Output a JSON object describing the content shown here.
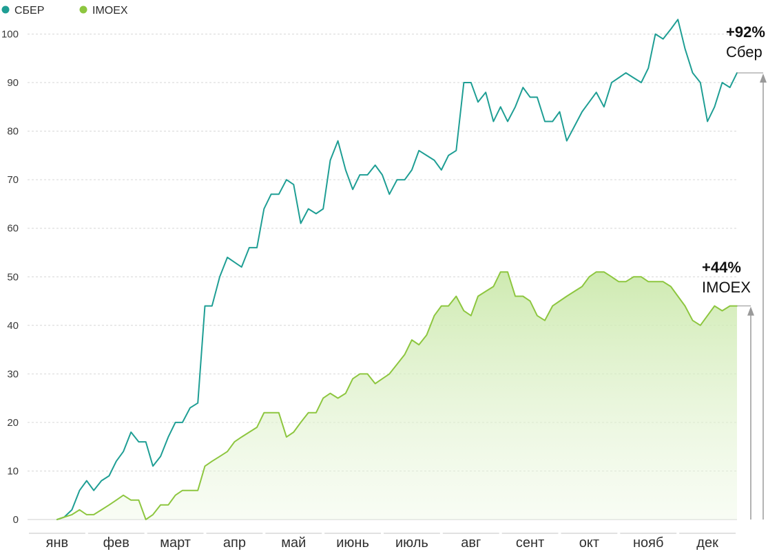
{
  "chart_data": {
    "type": "line",
    "title": "",
    "xlabel": "",
    "ylabel": "",
    "ylim": [
      0,
      100
    ],
    "yticks": [
      0,
      10,
      20,
      30,
      40,
      50,
      60,
      70,
      80,
      90,
      100
    ],
    "grid": "horizontal",
    "legend_position": "top-left",
    "categories": [
      "янв",
      "фев",
      "март",
      "апр",
      "май",
      "июнь",
      "июль",
      "авг",
      "сент",
      "окт",
      "нояб",
      "дек"
    ],
    "series": [
      {
        "name": "СБЕР",
        "color": "#1e9e94",
        "area": false,
        "annotation_value": "+92%",
        "annotation_label": "Сбер",
        "x": [
          0,
          0.12,
          0.25,
          0.38,
          0.5,
          0.62,
          0.75,
          0.88,
          1,
          1.12,
          1.25,
          1.38,
          1.5,
          1.62,
          1.75,
          1.88,
          2,
          2.12,
          2.25,
          2.38,
          2.5,
          2.62,
          2.75,
          2.88,
          3,
          3.12,
          3.25,
          3.38,
          3.5,
          3.62,
          3.75,
          3.88,
          4,
          4.12,
          4.25,
          4.38,
          4.5,
          4.62,
          4.75,
          4.88,
          5,
          5.12,
          5.25,
          5.38,
          5.5,
          5.62,
          5.75,
          5.88,
          6,
          6.12,
          6.25,
          6.38,
          6.5,
          6.62,
          6.75,
          6.88,
          7,
          7.12,
          7.25,
          7.38,
          7.5,
          7.62,
          7.75,
          7.88,
          8,
          8.12,
          8.25,
          8.38,
          8.5,
          8.62,
          8.75,
          8.88,
          9,
          9.12,
          9.25,
          9.38,
          9.5,
          9.62,
          9.75,
          9.88,
          10,
          10.12,
          10.25,
          10.38,
          10.5,
          10.62,
          10.75,
          10.88,
          11,
          11.12,
          11.25,
          11.38,
          11.5
        ],
        "values": [
          0,
          0.5,
          2,
          6,
          8,
          6,
          8,
          9,
          12,
          14,
          18,
          16,
          16,
          11,
          13,
          17,
          20,
          20,
          23,
          24,
          44,
          44,
          50,
          54,
          53,
          52,
          56,
          56,
          64,
          67,
          67,
          70,
          69,
          61,
          64,
          63,
          64,
          74,
          78,
          72,
          68,
          71,
          71,
          73,
          71,
          67,
          70,
          70,
          72,
          76,
          75,
          74,
          72,
          75,
          76,
          90,
          90,
          86,
          88,
          82,
          85,
          82,
          85,
          89,
          87,
          87,
          82,
          82,
          84,
          78,
          81,
          84,
          86,
          88,
          85,
          90,
          91,
          92,
          91,
          90,
          93,
          100,
          99,
          101,
          103,
          97,
          92,
          90,
          82,
          85,
          90,
          89,
          92
        ]
      },
      {
        "name": "IMOEX",
        "color": "#8dc63f",
        "area": true,
        "annotation_value": "+44%",
        "annotation_label": "IMOEX",
        "x": [
          0,
          0.12,
          0.25,
          0.38,
          0.5,
          0.62,
          0.75,
          0.88,
          1,
          1.12,
          1.25,
          1.38,
          1.5,
          1.62,
          1.75,
          1.88,
          2,
          2.12,
          2.25,
          2.38,
          2.5,
          2.62,
          2.75,
          2.88,
          3,
          3.12,
          3.25,
          3.38,
          3.5,
          3.62,
          3.75,
          3.88,
          4,
          4.12,
          4.25,
          4.38,
          4.5,
          4.62,
          4.75,
          4.88,
          5,
          5.12,
          5.25,
          5.38,
          5.5,
          5.62,
          5.75,
          5.88,
          6,
          6.12,
          6.25,
          6.38,
          6.5,
          6.62,
          6.75,
          6.88,
          7,
          7.12,
          7.25,
          7.38,
          7.5,
          7.62,
          7.75,
          7.88,
          8,
          8.12,
          8.25,
          8.38,
          8.5,
          8.62,
          8.75,
          8.88,
          9,
          9.12,
          9.25,
          9.38,
          9.5,
          9.62,
          9.75,
          9.88,
          10,
          10.12,
          10.25,
          10.38,
          10.5,
          10.62,
          10.75,
          10.88,
          11,
          11.12,
          11.25,
          11.38,
          11.5
        ],
        "values": [
          0,
          0.5,
          1,
          2,
          1,
          1,
          2,
          3,
          4,
          5,
          4,
          4,
          0,
          1,
          3,
          3,
          5,
          6,
          6,
          6,
          11,
          12,
          13,
          14,
          16,
          17,
          18,
          19,
          22,
          22,
          22,
          17,
          18,
          20,
          22,
          22,
          25,
          26,
          25,
          26,
          29,
          30,
          30,
          28,
          29,
          30,
          32,
          34,
          37,
          36,
          38,
          42,
          44,
          44,
          46,
          43,
          42,
          46,
          47,
          48,
          51,
          51,
          46,
          46,
          45,
          42,
          41,
          44,
          45,
          46,
          47,
          48,
          50,
          51,
          51,
          50,
          49,
          49,
          50,
          50,
          49,
          49,
          49,
          48,
          46,
          44,
          41,
          40,
          42,
          44,
          43,
          44,
          44
        ]
      }
    ]
  }
}
